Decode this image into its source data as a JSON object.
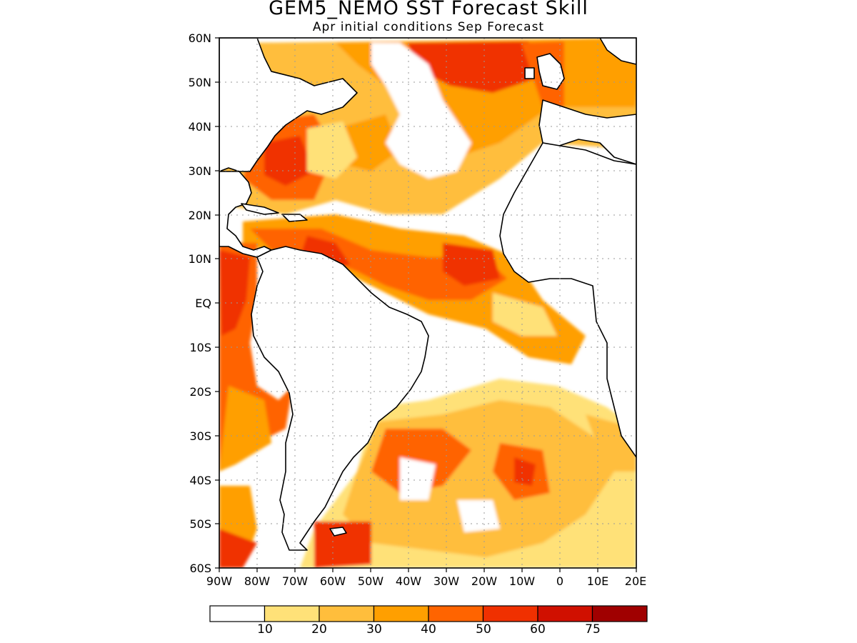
{
  "title": "GEM5_NEMO SST Forecast Skill",
  "subtitle": "Apr initial conditions  Sep Forecast",
  "lat_labels": [
    "60N",
    "50N",
    "40N",
    "30N",
    "20N",
    "10N",
    "EQ",
    "10S",
    "20S",
    "30S",
    "40S",
    "50S",
    "60S"
  ],
  "lon_labels": [
    "90W",
    "80W",
    "70W",
    "60W",
    "50W",
    "40W",
    "30W",
    "20W",
    "10W",
    "0",
    "10E",
    "20E"
  ],
  "colorbar": {
    "labels": [
      "10",
      "20",
      "30",
      "40",
      "50",
      "60",
      "75"
    ],
    "colors": [
      "#ffffff",
      "#ffe178",
      "#ffbe3c",
      "#ff9f00",
      "#ff6400",
      "#f03000",
      "#d01000",
      "#a00000"
    ]
  },
  "map_data": {
    "extent": {
      "lon": [
        -90,
        20
      ],
      "lat": [
        -60,
        60
      ]
    },
    "grid_step_deg": 10,
    "field": "SST forecast skill"
  }
}
